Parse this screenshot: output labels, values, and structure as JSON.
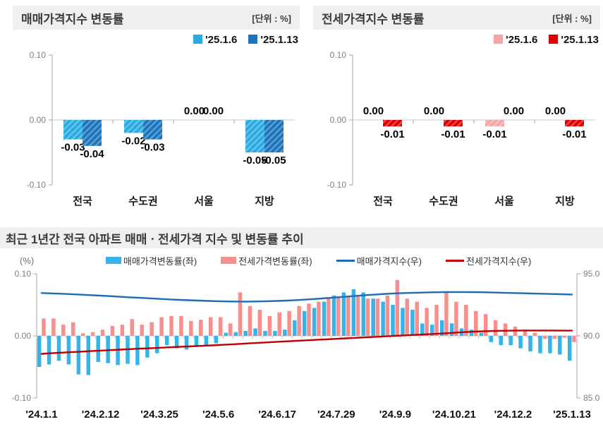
{
  "panels": {
    "sales": {
      "title": "매매가격지수 변동률",
      "unit": "[단위 : %]"
    },
    "jeonse": {
      "title": "전세가격지수 변동률",
      "unit": "[단위 : %]"
    },
    "trend": {
      "title": "최근 1년간 전국 아파트 매매ㆍ전세가격 지수 및 변동률 추이",
      "left_axis_unit": "(%)"
    }
  },
  "colors": {
    "sales_light": "#29ABE2",
    "sales_dark": "#1C75BC",
    "jeonse_light": "#F4A6A6",
    "jeonse_dark": "#DE0000",
    "trend_sales_bar": "#33B5EC",
    "trend_jeonse_bar": "#F98E8E",
    "trend_sales_line": "#1E6CB5",
    "trend_jeonse_line": "#C00000",
    "header_bg": "#EFEFEF",
    "axis": "#A6A6A6",
    "grid": "#C9C9C9",
    "tick_label": "#7F7F7F"
  },
  "chart_data": [
    {
      "id": "sales-change",
      "type": "bar",
      "title": "매매가격지수 변동률",
      "unit": "[단위 : %]",
      "categories": [
        "전국",
        "수도권",
        "서울",
        "지방"
      ],
      "series": [
        {
          "name": "'25.1.6",
          "key": "prev-week",
          "color": "#29ABE2",
          "hatch": true,
          "values": [
            -0.03,
            -0.02,
            0,
            -0.05
          ]
        },
        {
          "name": "'25.1.13",
          "key": "curr-week",
          "color": "#1C75BC",
          "hatch": true,
          "values": [
            -0.04,
            -0.03,
            0,
            -0.05
          ]
        }
      ],
      "ylim": [
        -0.1,
        0.1
      ],
      "yticks": [
        "0.10",
        "0.00",
        "-0.10"
      ],
      "legend_position": "top-right"
    },
    {
      "id": "jeonse-change",
      "type": "bar",
      "title": "전세가격지수 변동률",
      "unit": "[단위 : %]",
      "categories": [
        "전국",
        "수도권",
        "서울",
        "지방"
      ],
      "series": [
        {
          "name": "'25.1.6",
          "key": "prev-week",
          "color": "#F4A6A6",
          "hatch": true,
          "values": [
            0,
            0,
            -0.01,
            0
          ]
        },
        {
          "name": "'25.1.13",
          "key": "curr-week",
          "color": "#DE0000",
          "hatch": true,
          "values": [
            -0.01,
            -0.01,
            0,
            -0.01
          ]
        }
      ],
      "ylim": [
        -0.1,
        0.1
      ],
      "yticks": [
        "0.10",
        "0.00",
        "-0.10"
      ],
      "legend_position": "top-right"
    },
    {
      "id": "trend-combo",
      "type": "combo",
      "title": "최근 1년간 전국 아파트 매매ㆍ전세가격 지수 및 변동률 추이",
      "weeks": 55,
      "x_labels": [
        "'24.1.1",
        "'24.2.12",
        "'24.3.25",
        "'24.5.6",
        "'24.6.17",
        "'24.7.29",
        "'24.9.9",
        "'24.10.21",
        "'24.12.2",
        "'25.1.13"
      ],
      "x_label_indices": [
        0,
        6,
        12,
        18,
        24,
        30,
        36,
        42,
        48,
        54
      ],
      "left_axis": {
        "label": "(%)",
        "lim": [
          -0.1,
          0.1
        ],
        "ticks": [
          "0.10",
          "0.00",
          "-0.10"
        ]
      },
      "right_axis": {
        "lim": [
          85.0,
          95.0
        ],
        "ticks": [
          "95.0",
          "90.0",
          "85.0"
        ]
      },
      "series": [
        {
          "name": "매매가격변동률(좌)",
          "key": "sales-change-bars",
          "type": "bar",
          "axis": "left",
          "color": "#33B5EC",
          "values": [
            -0.05,
            -0.046,
            -0.04,
            -0.046,
            -0.062,
            -0.063,
            -0.042,
            -0.044,
            -0.047,
            -0.045,
            -0.047,
            -0.035,
            -0.028,
            -0.015,
            -0.02,
            -0.022,
            -0.018,
            -0.015,
            -0.012,
            0.005,
            0.006,
            0.008,
            0.012,
            0.008,
            0.008,
            0.01,
            0.025,
            0.04,
            0.045,
            0.055,
            0.065,
            0.07,
            0.075,
            0.07,
            0.06,
            0.055,
            0.05,
            0.045,
            0.042,
            0.02,
            0.018,
            0.025,
            0.02,
            0.012,
            0.01,
            0.005,
            -0.01,
            -0.015,
            -0.015,
            -0.02,
            -0.025,
            -0.028,
            -0.028,
            -0.03,
            -0.04
          ]
        },
        {
          "name": "전세가격변동률(좌)",
          "key": "jeonse-change-bars",
          "type": "bar",
          "axis": "left",
          "color": "#F98E8E",
          "values": [
            0.028,
            0.028,
            0.018,
            0.022,
            0.004,
            0.006,
            0.01,
            0.016,
            0.018,
            0.027,
            0.018,
            0.022,
            0.03,
            0.032,
            0.032,
            0.024,
            0.026,
            0.03,
            0.03,
            0.02,
            0.07,
            0.048,
            0.042,
            0.032,
            0.038,
            0.04,
            0.048,
            0.052,
            0.055,
            0.062,
            0.062,
            0.065,
            0.065,
            0.06,
            0.06,
            0.065,
            0.09,
            0.06,
            0.055,
            0.045,
            0.05,
            0.07,
            0.055,
            0.05,
            0.04,
            0.035,
            0.025,
            0.02,
            0.015,
            0.01,
            0.005,
            -0.005,
            -0.005,
            -0.003,
            -0.01
          ]
        },
        {
          "name": "매매가격지수(우)",
          "key": "sales-index-line",
          "type": "line",
          "axis": "right",
          "color": "#1E6CB5",
          "values": [
            93.45,
            93.42,
            93.39,
            93.36,
            93.32,
            93.28,
            93.24,
            93.2,
            93.15,
            93.1,
            93.06,
            93.02,
            92.98,
            92.94,
            92.9,
            92.87,
            92.84,
            92.81,
            92.79,
            92.77,
            92.76,
            92.76,
            92.77,
            92.79,
            92.81,
            92.84,
            92.88,
            92.93,
            92.98,
            93.04,
            93.1,
            93.16,
            93.22,
            93.28,
            93.33,
            93.38,
            93.42,
            93.45,
            93.47,
            93.49,
            93.51,
            93.52,
            93.53,
            93.53,
            93.52,
            93.51,
            93.49,
            93.47,
            93.45,
            93.43,
            93.41,
            93.39,
            93.37,
            93.35,
            93.33
          ]
        },
        {
          "name": "전세가격지수(우)",
          "key": "jeonse-index-line",
          "type": "line",
          "axis": "right",
          "color": "#C00000",
          "values": [
            88.55,
            88.6,
            88.65,
            88.69,
            88.73,
            88.77,
            88.81,
            88.85,
            88.89,
            88.93,
            88.97,
            89.0,
            89.04,
            89.08,
            89.12,
            89.15,
            89.19,
            89.22,
            89.26,
            89.3,
            89.34,
            89.39,
            89.44,
            89.48,
            89.52,
            89.56,
            89.6,
            89.64,
            89.68,
            89.72,
            89.76,
            89.8,
            89.84,
            89.88,
            89.92,
            89.96,
            90.0,
            90.04,
            90.08,
            90.12,
            90.16,
            90.2,
            90.25,
            90.3,
            90.34,
            90.37,
            90.39,
            90.41,
            90.42,
            90.43,
            90.43,
            90.43,
            90.43,
            90.42,
            90.42
          ]
        }
      ]
    }
  ]
}
